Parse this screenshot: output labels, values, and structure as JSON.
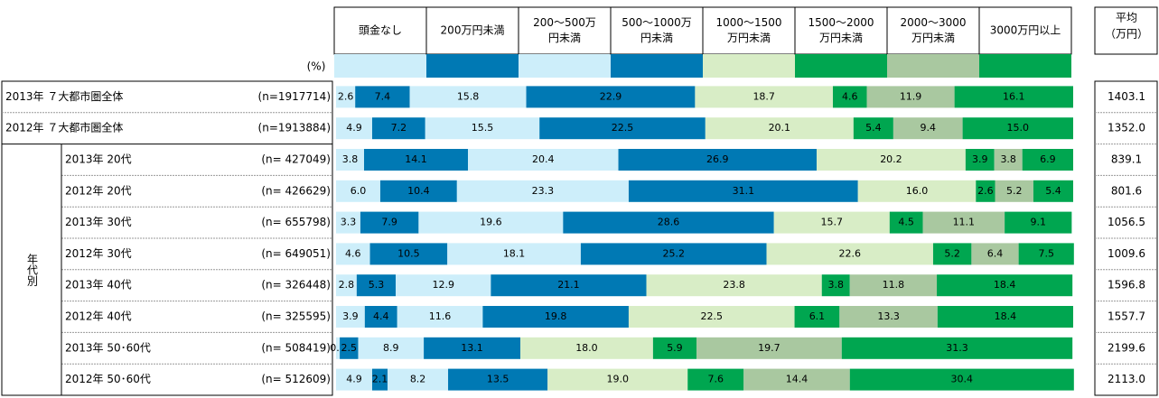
{
  "chart_data": {
    "type": "stacked-bar",
    "unit_label": "(%)",
    "xlim": [
      0,
      100
    ],
    "average_header": [
      "平均",
      "（万円）"
    ],
    "group_label": "年代別",
    "categories": [
      "2013年 ７大都市圏全体",
      "2012年 ７大都市圏全体",
      "2013年 20代",
      "2012年 20代",
      "2013年 30代",
      "2012年 30代",
      "2013年 40代",
      "2012年 40代",
      "2013年 50･60代",
      "2012年 50･60代"
    ],
    "n_labels": [
      "(n=1917714)",
      "(n=1913884)",
      "(n= 427049)",
      "(n= 426629)",
      "(n= 655798)",
      "(n= 649051)",
      "(n= 326448)",
      "(n= 325595)",
      "(n= 508419)",
      "(n= 512609)"
    ],
    "averages": [
      "1403.1",
      "1352.0",
      "839.1",
      "801.6",
      "1056.5",
      "1009.6",
      "1596.8",
      "1557.7",
      "2199.6",
      "2113.0"
    ],
    "series": [
      {
        "name": [
          "頭金なし"
        ],
        "color": "#cdeefa",
        "values": [
          2.6,
          4.9,
          3.8,
          6.0,
          3.3,
          4.6,
          2.8,
          3.9,
          0.5,
          4.9
        ],
        "value_labels": [
          "2.6",
          "4.9",
          "3.8",
          "6.0",
          "3.3",
          "4.6",
          "2.8",
          "3.9",
          "0.5",
          "4.9"
        ]
      },
      {
        "name": [
          "200万円未満"
        ],
        "color": "#0079b4",
        "values": [
          7.4,
          7.2,
          14.1,
          10.4,
          7.9,
          10.5,
          5.3,
          4.4,
          2.5,
          2.1
        ],
        "value_labels": [
          "7.4",
          "7.2",
          "14.1",
          "10.4",
          "7.9",
          "10.5",
          "5.3",
          "4.4",
          "2.5",
          "2.1"
        ]
      },
      {
        "name": [
          "200～500万",
          "円未満"
        ],
        "color": "#cdeefa",
        "values": [
          15.8,
          15.5,
          20.4,
          23.3,
          19.6,
          18.1,
          12.9,
          11.6,
          8.9,
          8.2
        ],
        "value_labels": [
          "15.8",
          "15.5",
          "20.4",
          "23.3",
          "19.6",
          "18.1",
          "12.9",
          "11.6",
          "8.9",
          "8.2"
        ]
      },
      {
        "name": [
          "500～1000万",
          "円未満"
        ],
        "color": "#0079b4",
        "values": [
          22.9,
          22.5,
          26.9,
          31.1,
          28.6,
          25.2,
          21.1,
          19.8,
          13.1,
          13.5
        ],
        "value_labels": [
          "22.9",
          "22.5",
          "26.9",
          "31.1",
          "28.6",
          "25.2",
          "21.1",
          "19.8",
          "13.1",
          "13.5"
        ]
      },
      {
        "name": [
          "1000～1500",
          "万円未満"
        ],
        "color": "#d8edc6",
        "values": [
          18.7,
          20.1,
          20.2,
          16.0,
          15.7,
          22.6,
          23.8,
          22.5,
          18.0,
          19.0
        ],
        "value_labels": [
          "18.7",
          "20.1",
          "20.2",
          "16.0",
          "15.7",
          "22.6",
          "23.8",
          "22.5",
          "18.0",
          "19.0"
        ]
      },
      {
        "name": [
          "1500～2000",
          "万円未満"
        ],
        "color": "#00a650",
        "values": [
          4.6,
          5.4,
          3.9,
          2.6,
          4.5,
          5.2,
          3.8,
          6.1,
          5.9,
          7.6
        ],
        "value_labels": [
          "4.6",
          "5.4",
          "3.9",
          "2.6",
          "4.5",
          "5.2",
          "3.8",
          "6.1",
          "5.9",
          "7.6"
        ]
      },
      {
        "name": [
          "2000～3000",
          "万円未満"
        ],
        "color": "#a9c8a0",
        "values": [
          11.9,
          9.4,
          3.8,
          5.2,
          11.1,
          6.4,
          11.8,
          13.3,
          19.7,
          14.4
        ],
        "value_labels": [
          "11.9",
          "9.4",
          "3.8",
          "5.2",
          "11.1",
          "6.4",
          "11.8",
          "13.3",
          "19.7",
          "14.4"
        ]
      },
      {
        "name": [
          "3000万円以上"
        ],
        "color": "#00a650",
        "values": [
          16.1,
          15.0,
          6.9,
          5.4,
          9.1,
          7.5,
          18.4,
          18.4,
          31.3,
          30.4
        ],
        "value_labels": [
          "16.1",
          "15.0",
          "6.9",
          "5.4",
          "9.1",
          "7.5",
          "18.4",
          "18.4",
          "31.3",
          "30.4"
        ]
      }
    ]
  }
}
